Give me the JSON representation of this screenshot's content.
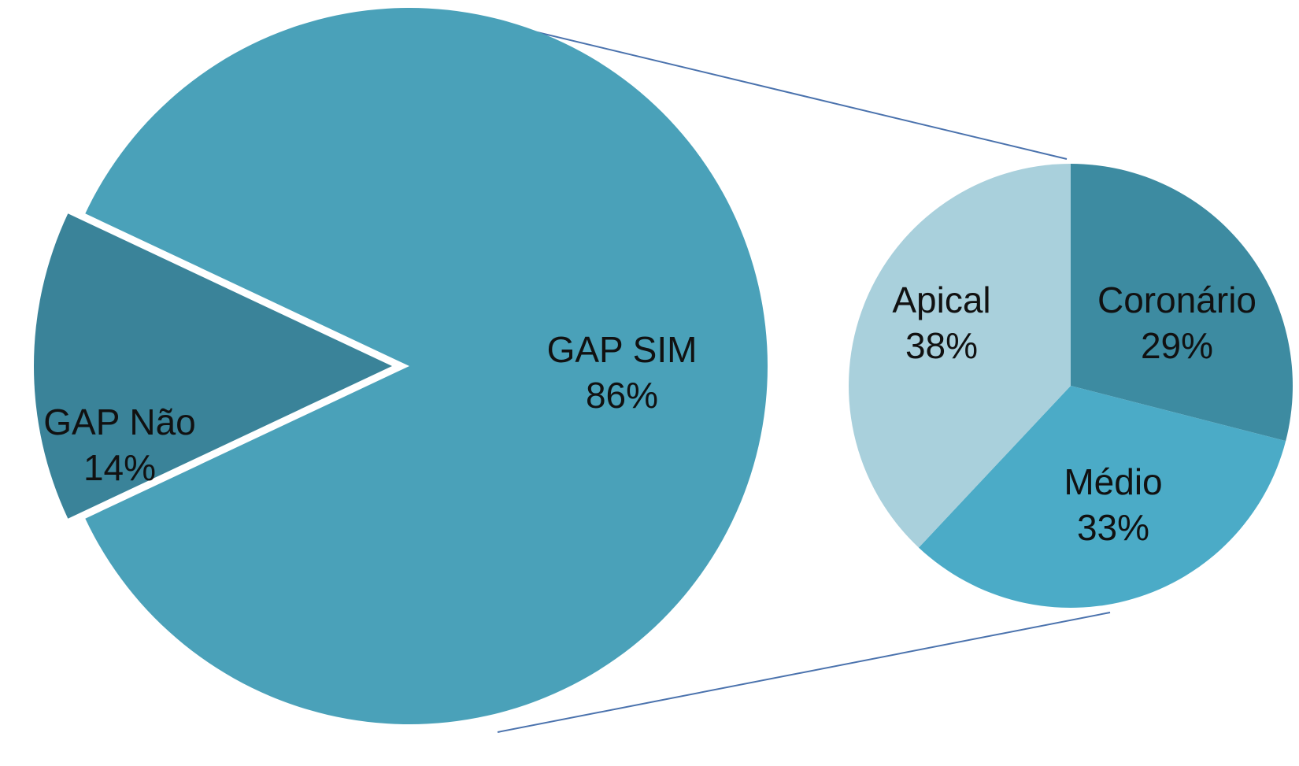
{
  "chart_data": {
    "type": "pie",
    "subtype": "pie-of-pie",
    "title": "",
    "main_pie": {
      "slices": [
        {
          "key": "gap_sim",
          "label": "GAP SIM",
          "value": 86,
          "value_label": "86%",
          "color": "#4aa1b9",
          "exploded": false
        },
        {
          "key": "gap_nao",
          "label": "GAP Não",
          "value": 14,
          "value_label": "14%",
          "color": "#3a8399",
          "exploded": true
        }
      ],
      "expanded_slice": "gap_sim"
    },
    "secondary_pie": {
      "parent": "GAP SIM",
      "slices": [
        {
          "key": "coronario",
          "label": "Coronário",
          "value": 29,
          "value_label": "29%",
          "color": "#3d8ba1"
        },
        {
          "key": "medio",
          "label": "Médio",
          "value": 33,
          "value_label": "33%",
          "color": "#4babc7"
        },
        {
          "key": "apical",
          "label": "Apical",
          "value": 38,
          "value_label": "38%",
          "color": "#a9d0dc"
        }
      ]
    },
    "connector_color": "#4a72ad",
    "legend": "none",
    "labels_inside": true
  }
}
